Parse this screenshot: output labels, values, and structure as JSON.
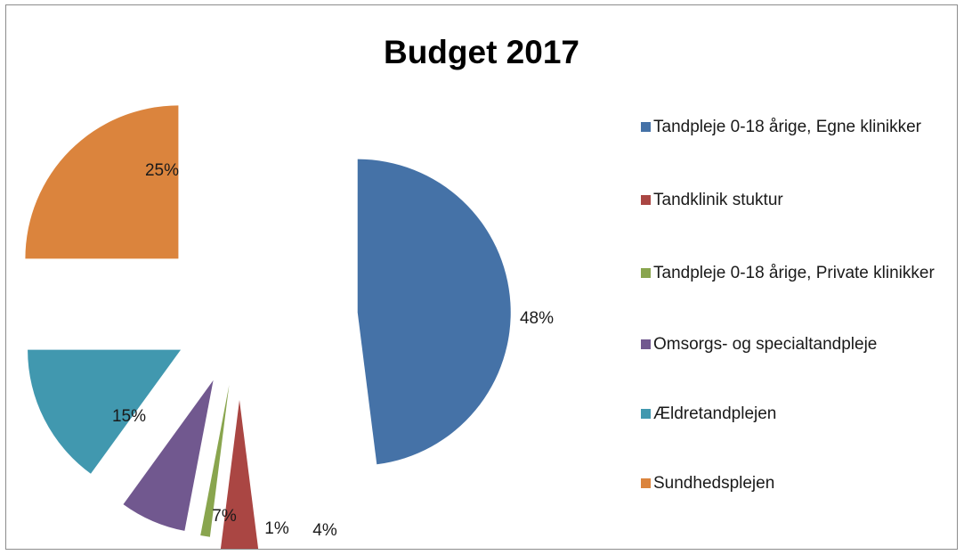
{
  "chart_data": {
    "type": "pie",
    "title": "Budget 2017",
    "legend_position": "right",
    "exploded": true,
    "slices": [
      {
        "name": "Tandpleje 0-18 årige, Egne klinikker",
        "value": 48,
        "label": "48%",
        "color": "#4572A7"
      },
      {
        "name": "Tandklinik stuktur",
        "value": 4,
        "label": "4%",
        "color": "#AA4643"
      },
      {
        "name": "Tandpleje 0-18 årige, Private klinikker",
        "value": 1,
        "label": "1%",
        "color": "#89A54E"
      },
      {
        "name": "Omsorgs- og specialtandpleje",
        "value": 7,
        "label": "7%",
        "color": "#71588F"
      },
      {
        "name": "Ældretandplejen",
        "value": 15,
        "label": "15%",
        "color": "#4198AF"
      },
      {
        "name": "Sundhedsplejen",
        "value": 25,
        "label": "25%",
        "color": "#DB843D"
      }
    ]
  }
}
